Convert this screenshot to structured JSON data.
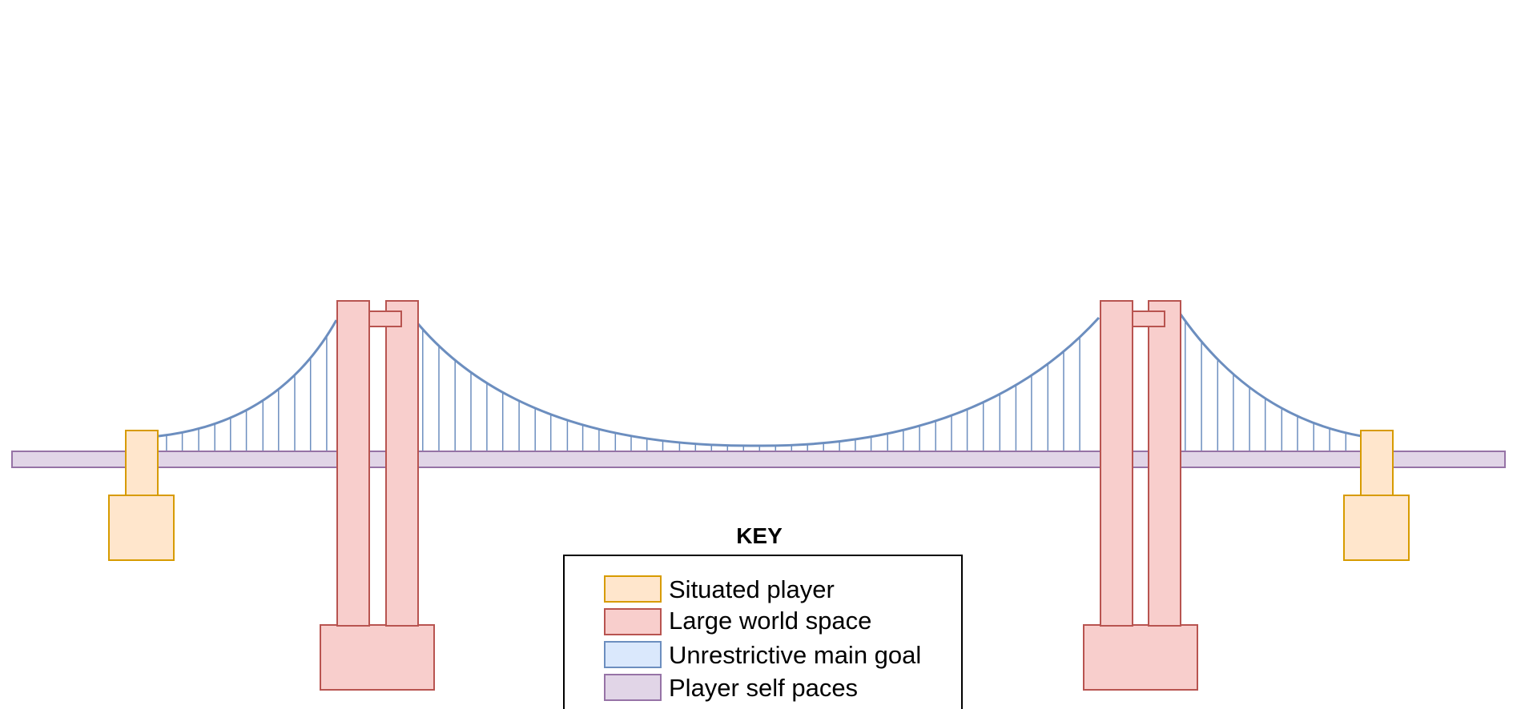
{
  "diagram": {
    "legend": {
      "title": "KEY",
      "items": [
        {
          "label": "Situated player",
          "fill": "#ffe6cc",
          "stroke": "#d79b00"
        },
        {
          "label": "Large world space",
          "fill": "#f8cecc",
          "stroke": "#b85450"
        },
        {
          "label": "Unrestrictive main goal",
          "fill": "#dae8fc",
          "stroke": "#6c8ebf"
        },
        {
          "label": "Player self paces",
          "fill": "#e1d5e7",
          "stroke": "#9673a6"
        }
      ]
    },
    "components": {
      "anchorages": "Situated player",
      "towers": "Large world space",
      "cables": "Unrestrictive main goal",
      "deck": "Player self paces"
    },
    "colors": {
      "background": "#ffffff",
      "legend_border": "#000000"
    }
  }
}
